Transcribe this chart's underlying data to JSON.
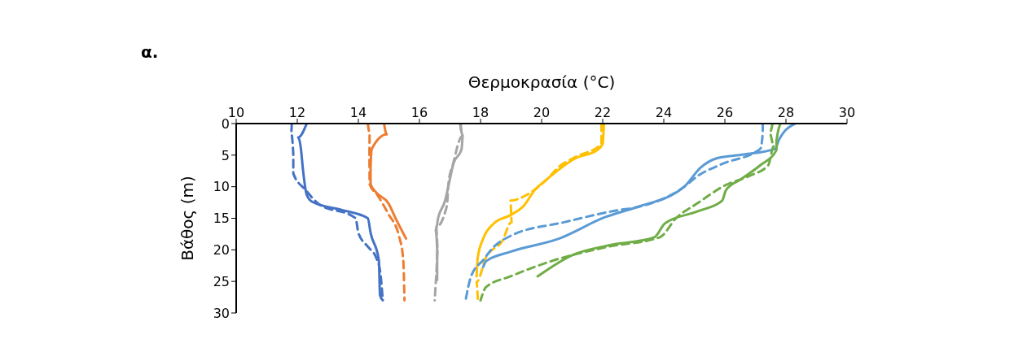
{
  "chart_data": {
    "type": "line",
    "title": "α.",
    "xlabel": "Θερμοκρασία (°C)",
    "ylabel": "Βάθος (m)",
    "xlim": [
      10,
      30
    ],
    "xticks": [
      10,
      12,
      14,
      16,
      18,
      20,
      22,
      24,
      26,
      28,
      30
    ],
    "ylim": [
      30,
      0
    ],
    "yticks": [
      0,
      5,
      10,
      15,
      20,
      25,
      30
    ],
    "marker": "none",
    "series": [
      {
        "color": "#4472c4",
        "line_style": "solid",
        "x": [
          12.31,
          12.03,
          12.12,
          12.18,
          12.31,
          12.49,
          13.47,
          14.31,
          14.4,
          14.67,
          14.71,
          14.8
        ],
        "values": [
          0,
          2.2,
          4,
          7,
          11.3,
          12.4,
          13.7,
          15,
          17.3,
          21.6,
          27.2,
          28
        ]
      },
      {
        "color": "#4472c4",
        "line_style": "dashed",
        "x": [
          11.82,
          11.8,
          11.87,
          11.87,
          12.27,
          12.67,
          13.91,
          14,
          14.31,
          14.58,
          14.71,
          14.8
        ],
        "values": [
          0,
          1.5,
          4.9,
          7.9,
          10.5,
          12.6,
          15,
          17.3,
          19.5,
          21.2,
          23.3,
          28
        ]
      },
      {
        "color": "#ed7d31",
        "line_style": "solid",
        "x": [
          14.84,
          14.93,
          14.44,
          14.4,
          14.4,
          14.58,
          14.98,
          15.24,
          15.56
        ],
        "values": [
          0,
          1.7,
          4,
          7,
          9.6,
          10.9,
          12.6,
          15.2,
          18.2
        ]
      },
      {
        "color": "#ed7d31",
        "line_style": "dashed",
        "x": [
          14.31,
          14.37,
          14.36,
          14.37,
          14.62,
          14.98,
          15.33,
          15.47,
          15.51
        ],
        "values": [
          0,
          1.5,
          4.9,
          9.6,
          11.3,
          14.3,
          17.8,
          21.6,
          28
        ]
      },
      {
        "color": "#a5a5a5",
        "line_style": "solid",
        "x": [
          17.33,
          17.42,
          17.38,
          17.11,
          16.98,
          16.84,
          16.62,
          16.53,
          16.58,
          16.58
        ],
        "values": [
          0,
          1.9,
          4,
          6.4,
          9.2,
          12.2,
          14.8,
          16.9,
          19.9,
          24.8
        ]
      },
      {
        "color": "#a5a5a5",
        "line_style": "dashed",
        "x": [
          17.35,
          17.4,
          17.1,
          16.95,
          16.9,
          16.55,
          16.6,
          16.55,
          16.5
        ],
        "values": [
          0,
          2,
          6.4,
          9.5,
          13,
          16.4,
          20,
          24,
          28
        ]
      },
      {
        "color": "#ffc000",
        "line_style": "solid",
        "x": [
          22.04,
          22,
          21.82,
          21.11,
          20.13,
          19.78,
          19.42,
          18.98,
          18.44,
          18.09,
          17.91,
          17.87
        ],
        "values": [
          0,
          3.2,
          4.2,
          5.5,
          9,
          10.5,
          13,
          14.5,
          15.8,
          18.2,
          21.2,
          24.2
        ]
      },
      {
        "color": "#ffc000",
        "line_style": "dashed",
        "x": [
          21.96,
          21.96,
          21.11,
          20.58,
          20.18,
          19.51,
          18.98,
          19.02,
          18.71,
          18.18,
          17.87,
          17.91
        ],
        "values": [
          0,
          3.2,
          5.3,
          6.8,
          8.8,
          11.3,
          12.2,
          15.6,
          18.6,
          21.2,
          25.1,
          27.8
        ]
      },
      {
        "color": "#5b9bd5",
        "line_style": "solid",
        "x": [
          28.31,
          27.78,
          27.64,
          26.62,
          25.73,
          25.2,
          24.67,
          23.07,
          22.09,
          20.58,
          18.98,
          18.18,
          18.09
        ],
        "values": [
          0,
          2.5,
          4,
          4.9,
          5.5,
          7,
          10,
          13.3,
          14.8,
          18.2,
          20.3,
          21.8,
          22.7
        ]
      },
      {
        "color": "#5b9bd5",
        "line_style": "dashed",
        "x": [
          27.24,
          27.24,
          27.16,
          25.91,
          25.11,
          24.67,
          23.07,
          22.53,
          20.76,
          18.98,
          18.44,
          18.09,
          17.69,
          17.51
        ],
        "values": [
          0,
          1.5,
          4,
          6.4,
          8.3,
          10,
          13.3,
          13.7,
          15.6,
          17.8,
          19.5,
          21.6,
          24.2,
          28
        ]
      },
      {
        "color": "#70ad47",
        "line_style": "solid",
        "x": [
          27.82,
          27.69,
          27.69,
          27.16,
          26.53,
          26.04,
          25.91,
          25.11,
          24.04,
          23.69,
          22.18,
          21.02,
          19.87
        ],
        "values": [
          0,
          2.8,
          4.2,
          6.6,
          8.8,
          10.5,
          12.2,
          13.9,
          15.8,
          18,
          19.3,
          20.8,
          24.2
        ]
      },
      {
        "color": "#70ad47",
        "line_style": "dashed",
        "x": [
          27.56,
          27.47,
          27.6,
          27.42,
          26.8,
          26,
          25.11,
          24.4,
          23.87,
          22.18,
          20.31,
          18.98,
          18.18,
          18
        ],
        "values": [
          0,
          1.5,
          3.6,
          6.6,
          8.3,
          9.8,
          12.6,
          15,
          18,
          19.5,
          21.8,
          24.2,
          25.9,
          28
        ]
      }
    ]
  }
}
